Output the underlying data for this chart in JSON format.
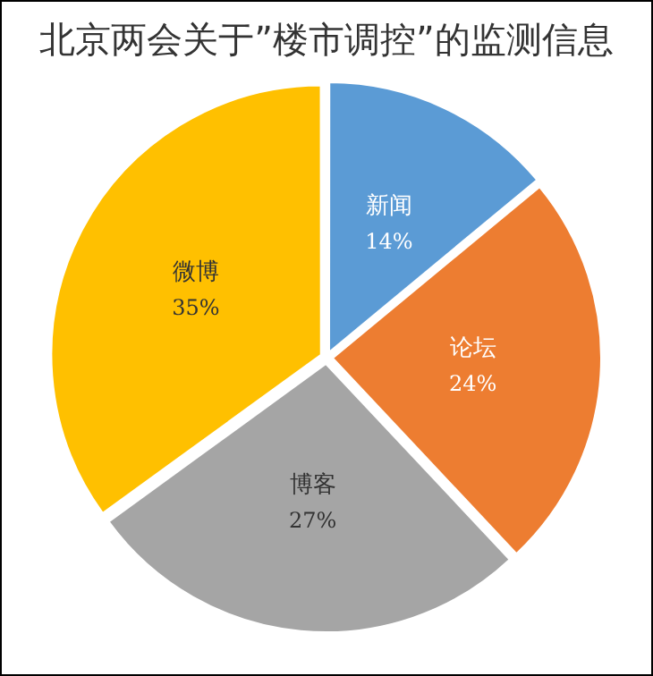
{
  "chart_data": {
    "type": "pie",
    "title": "北京两会关于”楼市调控”的监测信息",
    "categories": [
      "新闻",
      "论坛",
      "博客",
      "微博"
    ],
    "values": [
      14,
      24,
      27,
      35
    ],
    "value_labels": [
      "14%",
      "24%",
      "27%",
      "35%"
    ],
    "colors": [
      "#5b9bd5",
      "#ed7d31",
      "#a5a5a5",
      "#ffc000"
    ],
    "legend": false
  }
}
